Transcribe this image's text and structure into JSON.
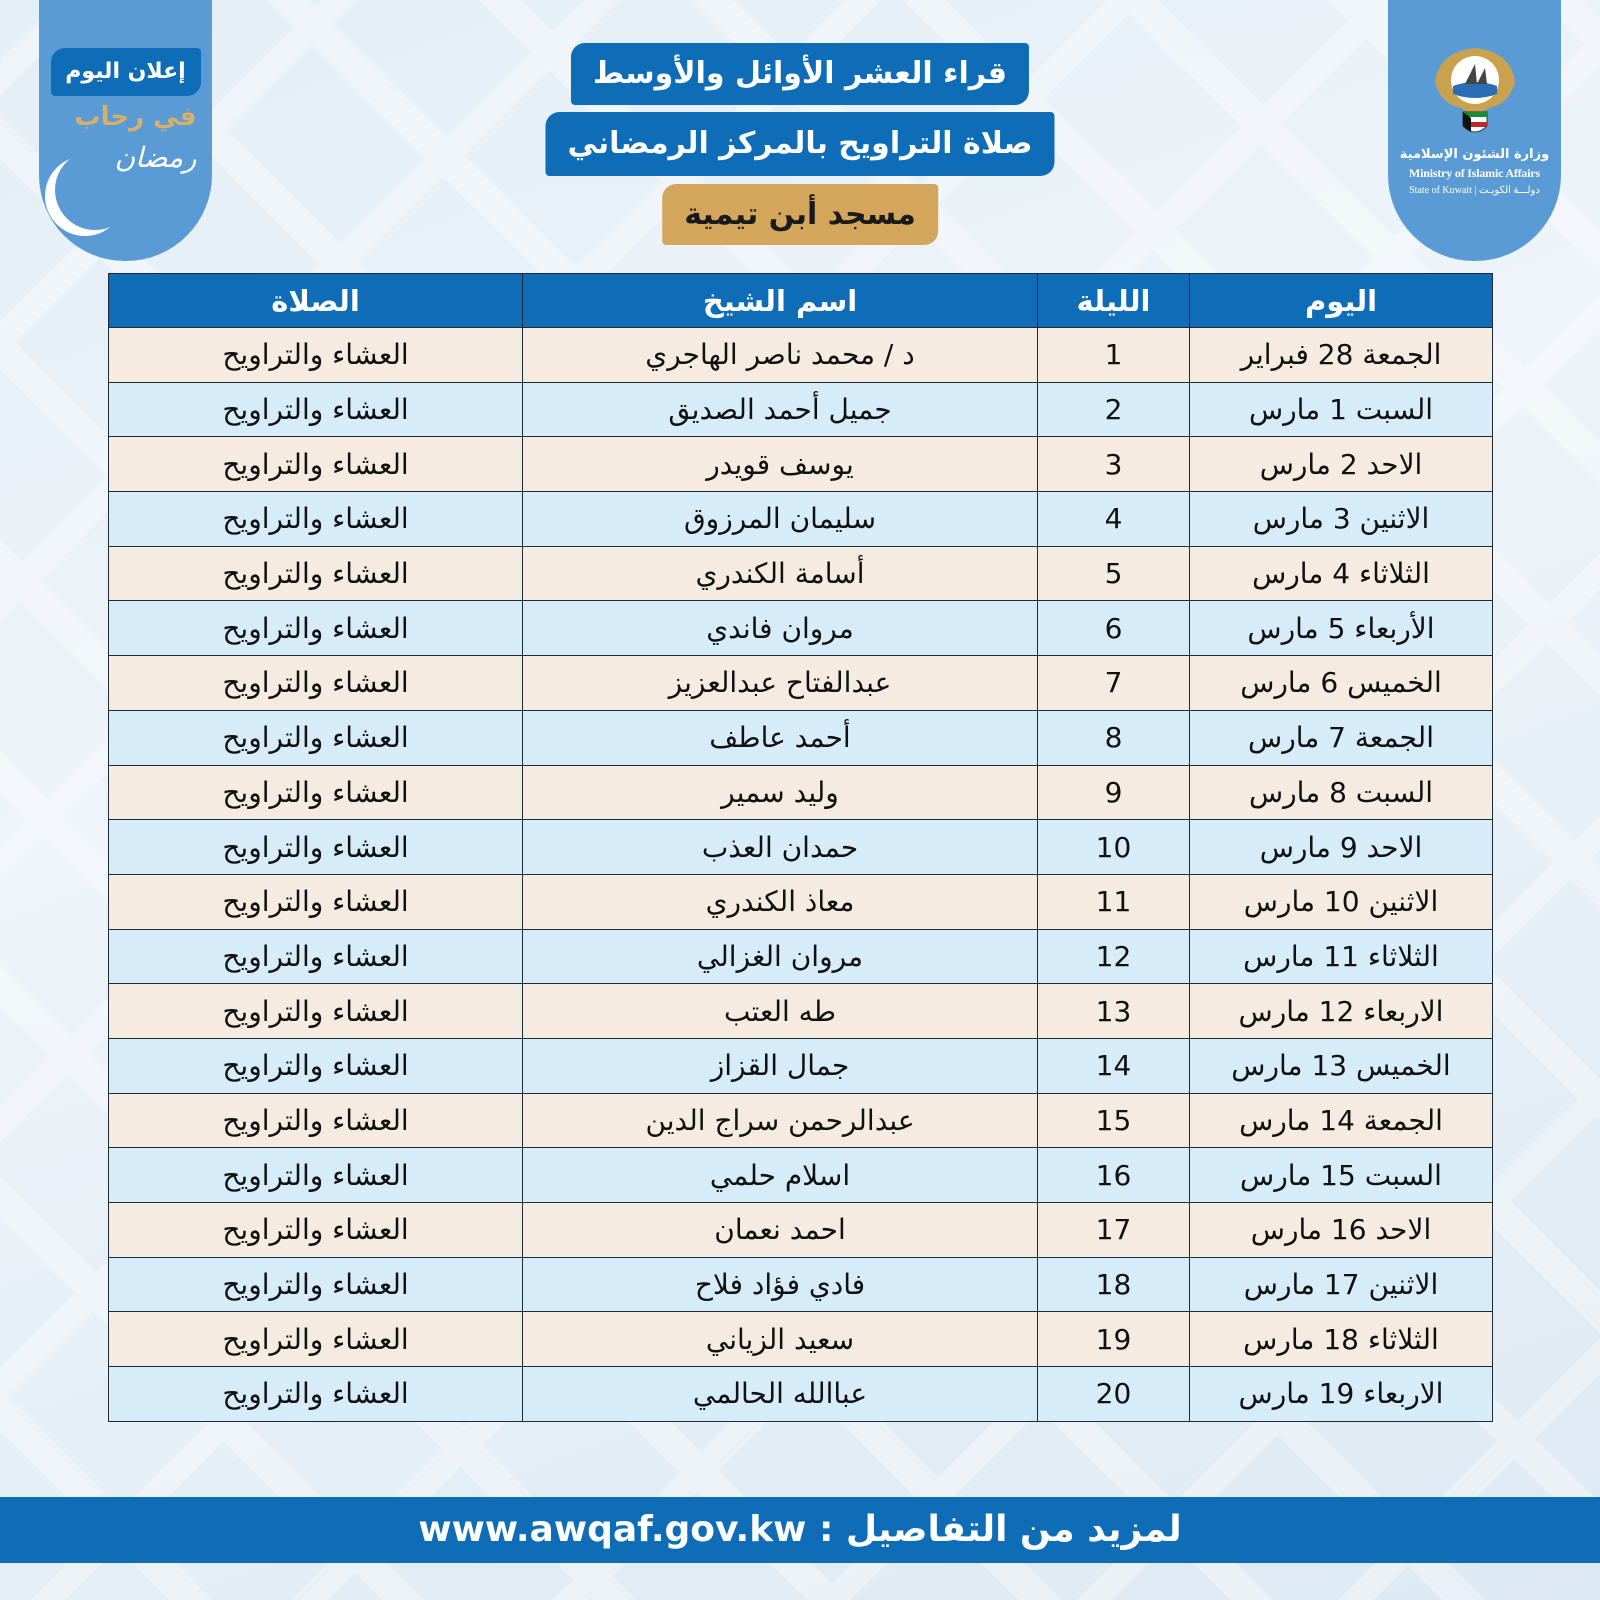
{
  "left_badge": {
    "tag": "إعلان اليوم",
    "logo_text_1": "في رحاب",
    "logo_text_2": "رمضان"
  },
  "right_badge": {
    "arabic_name": "وزارة الشئون الإسلامية",
    "english_name": "Ministry of Islamic Affairs",
    "state": "State of Kuwait | دولـــة الكويـت",
    "emblem_text": "دولة الكويت"
  },
  "titles": {
    "line1": "قراء العشر الأوائل والأوسط",
    "line2": "صلاة التراويح بالمركز الرمضاني",
    "mosque": "مسجد أبن تيمية"
  },
  "colors": {
    "primary": "#0f6db8",
    "gold": "#d3a65c",
    "row_odd": "#f5ebe0",
    "row_even": "#d6ecf8"
  },
  "table": {
    "headers": {
      "day": "اليوم",
      "night": "الليلة",
      "name": "اسم الشيخ",
      "prayer": "الصلاة"
    },
    "rows": [
      {
        "day": "الجمعة 28 فبراير",
        "night": "1",
        "name": "د / محمد ناصر الهاجري",
        "prayer": "العشاء والتراويح"
      },
      {
        "day": "السبت 1 مارس",
        "night": "2",
        "name": "جميل أحمد الصديق",
        "prayer": "العشاء والتراويح"
      },
      {
        "day": "الاحد 2 مارس",
        "night": "3",
        "name": "يوسف قويدر",
        "prayer": "العشاء والتراويح"
      },
      {
        "day": "الاثنين 3 مارس",
        "night": "4",
        "name": "سليمان المرزوق",
        "prayer": "العشاء والتراويح"
      },
      {
        "day": "الثلاثاء 4 مارس",
        "night": "5",
        "name": "أسامة الكندري",
        "prayer": "العشاء والتراويح"
      },
      {
        "day": "الأربعاء 5 مارس",
        "night": "6",
        "name": "مروان فاندي",
        "prayer": "العشاء والتراويح"
      },
      {
        "day": "الخميس 6 مارس",
        "night": "7",
        "name": "عبدالفتاح عبدالعزيز",
        "prayer": "العشاء والتراويح"
      },
      {
        "day": "الجمعة 7 مارس",
        "night": "8",
        "name": "أحمد عاطف",
        "prayer": "العشاء والتراويح"
      },
      {
        "day": "السبت 8 مارس",
        "night": "9",
        "name": "وليد سمير",
        "prayer": "العشاء والتراويح"
      },
      {
        "day": "الاحد 9 مارس",
        "night": "10",
        "name": "حمدان العذب",
        "prayer": "العشاء والتراويح"
      },
      {
        "day": "الاثنين 10 مارس",
        "night": "11",
        "name": "معاذ الكندري",
        "prayer": "العشاء والتراويح"
      },
      {
        "day": "الثلاثاء 11 مارس",
        "night": "12",
        "name": "مروان الغزالي",
        "prayer": "العشاء والتراويح"
      },
      {
        "day": "الاربعاء 12 مارس",
        "night": "13",
        "name": "طه العتب",
        "prayer": "العشاء والتراويح"
      },
      {
        "day": "الخميس 13 مارس",
        "night": "14",
        "name": "جمال القزاز",
        "prayer": "العشاء والتراويح"
      },
      {
        "day": "الجمعة 14 مارس",
        "night": "15",
        "name": "عبدالرحمن سراج الدين",
        "prayer": "العشاء والتراويح"
      },
      {
        "day": "السبت 15 مارس",
        "night": "16",
        "name": "اسلام حلمي",
        "prayer": "العشاء والتراويح"
      },
      {
        "day": "الاحد 16 مارس",
        "night": "17",
        "name": "احمد نعمان",
        "prayer": "العشاء والتراويح"
      },
      {
        "day": "الاثنين 17 مارس",
        "night": "18",
        "name": "فادي فؤاد فلاح",
        "prayer": "العشاء والتراويح"
      },
      {
        "day": "الثلاثاء 18 مارس",
        "night": "19",
        "name": "سعيد الزياني",
        "prayer": "العشاء والتراويح"
      },
      {
        "day": "الاربعاء 19 مارس",
        "night": "20",
        "name": "عباالله الحالمي",
        "prayer": "العشاء والتراويح"
      }
    ]
  },
  "footer": {
    "text": "لمزيد من التفاصيل : www.awqaf.gov.kw"
  }
}
